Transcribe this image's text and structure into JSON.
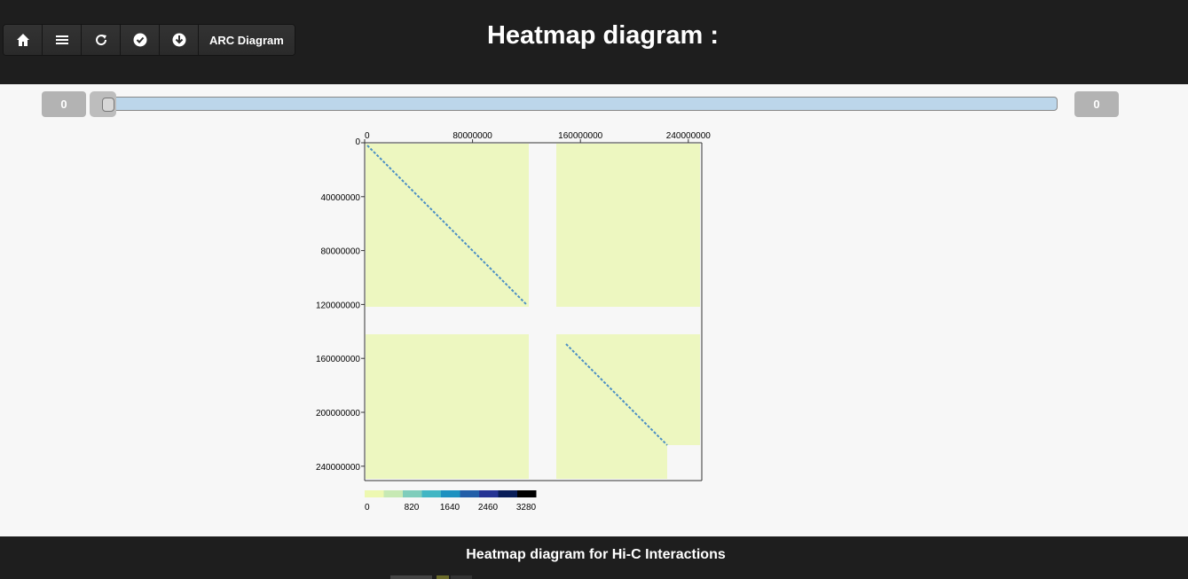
{
  "header": {
    "title": "Heatmap diagram :",
    "toolbar": [
      {
        "icon": "home-icon"
      },
      {
        "icon": "menu-icon"
      },
      {
        "icon": "refresh-icon"
      },
      {
        "icon": "check-icon"
      },
      {
        "icon": "download-icon"
      }
    ],
    "arc_label": "ARC Diagram"
  },
  "range": {
    "min_label": "0",
    "max_label": "0"
  },
  "chart_data": {
    "type": "heatmap",
    "x_ticks": [
      "0",
      "80000000",
      "160000000",
      "240000000"
    ],
    "y_ticks": [
      "0",
      "40000000",
      "80000000",
      "120000000",
      "160000000",
      "200000000",
      "240000000"
    ],
    "colorbar": {
      "ticks": [
        "0",
        "820",
        "1640",
        "2460",
        "3280"
      ],
      "colors": [
        "#edf8b1",
        "#c7e9b4",
        "#7fcdbb",
        "#41b6c4",
        "#1d91c0",
        "#225ea8",
        "#253494",
        "#081d58",
        "#000000"
      ]
    },
    "background_color": "#edf7c0",
    "diagonal_color": "#4c8fc4"
  },
  "footer": {
    "text": "Heatmap diagram for Hi-C Interactions",
    "tab_colors": [
      "#444444",
      "#6b6b2a",
      "#333333"
    ]
  }
}
